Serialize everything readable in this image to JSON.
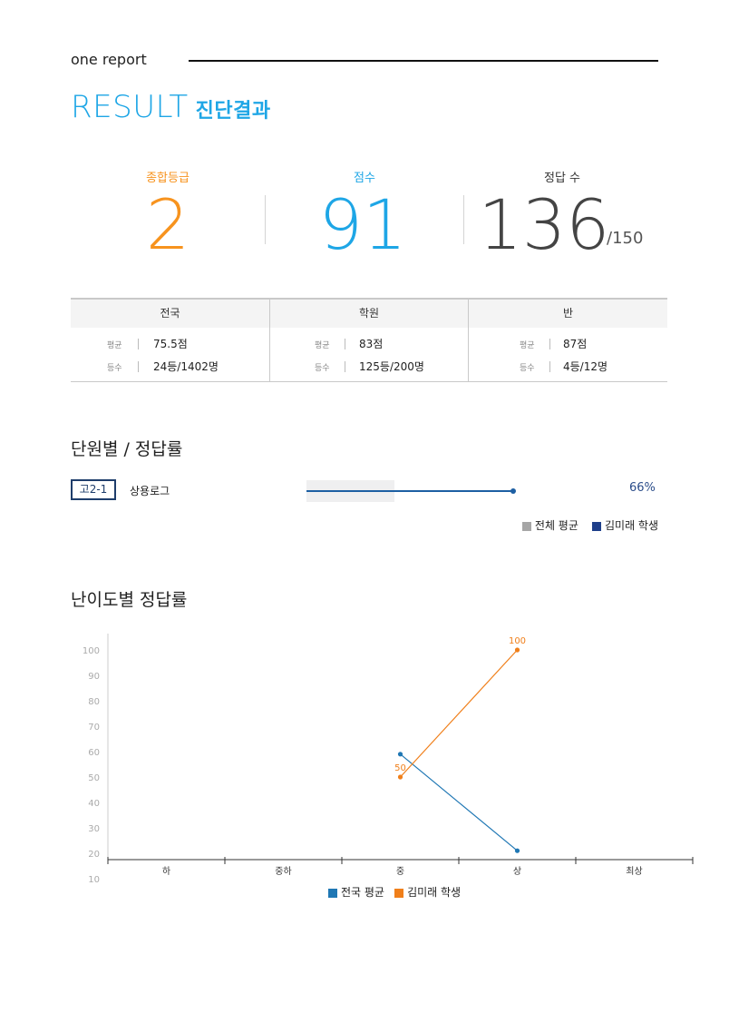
{
  "header": {
    "brand": "one report",
    "title_en": "RESULT",
    "title_ko": "진단결과"
  },
  "summary": {
    "grade_label": "종합등급",
    "grade_value": "2",
    "score_label": "점수",
    "score_value": "91",
    "correct_label": "정답 수",
    "correct_value": "136",
    "correct_total": "/150"
  },
  "stats": {
    "columns": [
      {
        "header": "전국",
        "avg_key": "평균",
        "avg_value": "75.5점",
        "rank_key": "등수",
        "rank_value": "24등/1402명"
      },
      {
        "header": "학원",
        "avg_key": "평균",
        "avg_value": "83점",
        "rank_key": "등수",
        "rank_value": "125등/200명"
      },
      {
        "header": "반",
        "avg_key": "평균",
        "avg_value": "87점",
        "rank_key": "등수",
        "rank_value": "4등/12명"
      }
    ]
  },
  "unit_section": {
    "title": "단원별 / 정답률",
    "badge": "고2-1",
    "unit_name": "상용로그",
    "student_rate": 0.66,
    "average_rate": 0.42,
    "pct_label": "66%",
    "legend": [
      {
        "label": "전체 평균",
        "color": "#a6a6a6"
      },
      {
        "label": "김미래 학생",
        "color": "#1e3f8a"
      }
    ]
  },
  "difficulty_section": {
    "title": "난이도별 정답률",
    "legend": [
      {
        "label": "전국 평균",
        "color": "#1f77b4"
      },
      {
        "label": "김미래 학생",
        "color": "#f07f1a"
      }
    ]
  },
  "colors": {
    "accent": "#1ea6e6",
    "grade": "#f7931e",
    "score": "#1ea6e6",
    "correct": "#444444"
  },
  "chart_data": {
    "type": "line",
    "categories": [
      "하",
      "중하",
      "중",
      "상",
      "최상"
    ],
    "ylim": [
      10,
      100
    ],
    "yticks": [
      10,
      20,
      30,
      40,
      50,
      60,
      70,
      80,
      90,
      100
    ],
    "grid": false,
    "legend_position": "bottom",
    "series": [
      {
        "name": "전국 평균",
        "color": "#1f77b4",
        "values": [
          null,
          null,
          59,
          21,
          null
        ],
        "labels": []
      },
      {
        "name": "김미래 학생",
        "color": "#f07f1a",
        "values": [
          null,
          null,
          50,
          100,
          null
        ],
        "labels": [
          "",
          "",
          "50",
          "100",
          ""
        ]
      }
    ]
  }
}
